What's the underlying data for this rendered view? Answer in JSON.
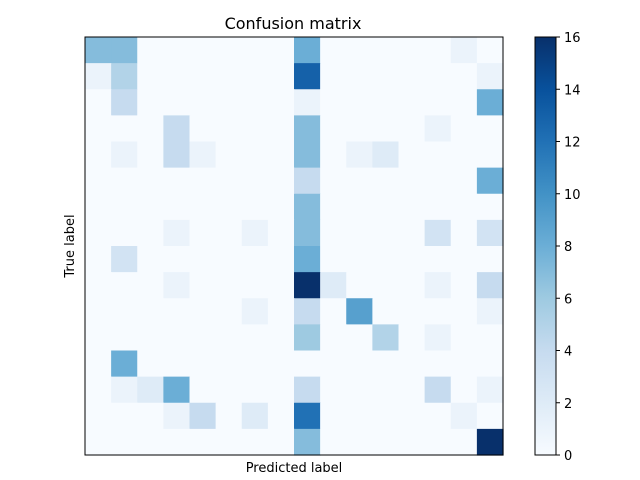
{
  "chart_data": {
    "type": "heatmap",
    "title": "Confusion matrix",
    "xlabel": "Predicted label",
    "ylabel": "True label",
    "rows": 16,
    "cols": 16,
    "matrix": [
      [
        7,
        7,
        0,
        0,
        0,
        0,
        0,
        0,
        8,
        0,
        0,
        0,
        0,
        0,
        1,
        0
      ],
      [
        1,
        5,
        0,
        0,
        0,
        0,
        0,
        0,
        13,
        0,
        0,
        0,
        0,
        0,
        0,
        1
      ],
      [
        0,
        4,
        0,
        0,
        0,
        0,
        0,
        0,
        1,
        0,
        0,
        0,
        0,
        0,
        0,
        8
      ],
      [
        0,
        0,
        0,
        4,
        0,
        0,
        0,
        0,
        7,
        0,
        0,
        0,
        0,
        1,
        0,
        0
      ],
      [
        0,
        1,
        0,
        4,
        1,
        0,
        0,
        0,
        7,
        0,
        1,
        2,
        0,
        0,
        0,
        0
      ],
      [
        0,
        0,
        0,
        0,
        0,
        0,
        0,
        0,
        4,
        0,
        0,
        0,
        0,
        0,
        0,
        8
      ],
      [
        0,
        0,
        0,
        0,
        0,
        0,
        0,
        0,
        7,
        0,
        0,
        0,
        0,
        0,
        0,
        0
      ],
      [
        0,
        0,
        0,
        1,
        0,
        0,
        1,
        0,
        7,
        0,
        0,
        0,
        0,
        3,
        0,
        3
      ],
      [
        0,
        3,
        0,
        0,
        0,
        0,
        0,
        0,
        8,
        0,
        0,
        0,
        0,
        0,
        0,
        0
      ],
      [
        0,
        0,
        0,
        1,
        0,
        0,
        0,
        0,
        16,
        2,
        0,
        0,
        0,
        1,
        0,
        4
      ],
      [
        0,
        0,
        0,
        0,
        0,
        0,
        1,
        0,
        4,
        0,
        9,
        0,
        0,
        0,
        0,
        1
      ],
      [
        0,
        0,
        0,
        0,
        0,
        0,
        0,
        0,
        6,
        0,
        0,
        5,
        0,
        1,
        0,
        0
      ],
      [
        0,
        8,
        0,
        0,
        0,
        0,
        0,
        0,
        0,
        0,
        0,
        0,
        0,
        0,
        0,
        0
      ],
      [
        0,
        1,
        2,
        8,
        0,
        0,
        0,
        0,
        4,
        0,
        0,
        0,
        0,
        4,
        0,
        1
      ],
      [
        0,
        0,
        0,
        1,
        4,
        0,
        2,
        0,
        12,
        0,
        0,
        0,
        0,
        0,
        1,
        0
      ],
      [
        0,
        0,
        0,
        0,
        0,
        0,
        0,
        0,
        7,
        0,
        0,
        0,
        0,
        0,
        0,
        16
      ]
    ],
    "colorbar": {
      "min": 0,
      "max": 16,
      "ticks": [
        0,
        2,
        4,
        6,
        8,
        10,
        12,
        14,
        16
      ],
      "colormap": "Blues"
    },
    "grid": false,
    "legend": "colorbar-right"
  }
}
